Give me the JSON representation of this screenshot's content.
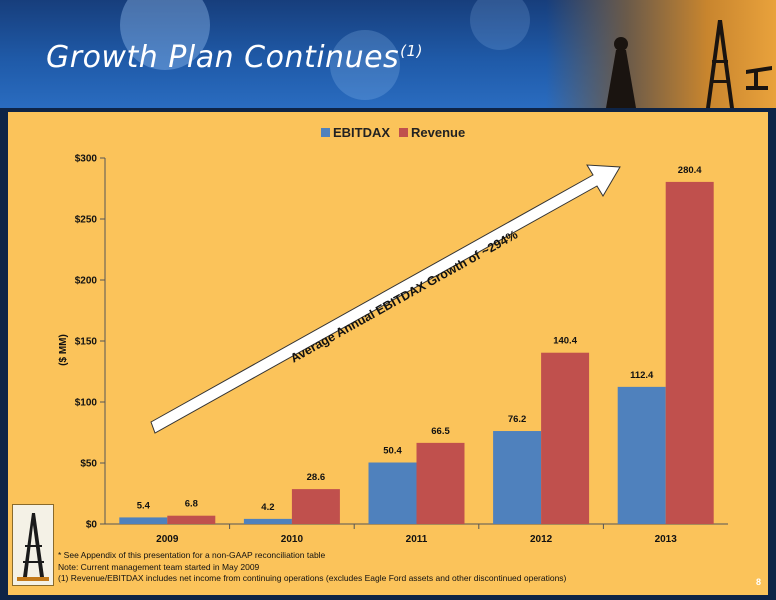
{
  "slide": {
    "title": "Growth Plan Continues",
    "title_superscript": "(1)",
    "page_number": "8",
    "footnotes": [
      "* See Appendix of this presentation for a non-GAAP reconciliation table",
      "Note: Current management team started in May 2009",
      "(1) Revenue/EBITDAX includes net income from continuing operations (excludes Eagle Ford assets and other discontinued operations)"
    ],
    "arrow_label": "Average Annual EBITDAX Growth of ~294%"
  },
  "colors": {
    "ebitdax": "#4f81bd",
    "revenue": "#c0504d",
    "panel": "#fbc35a",
    "header": "#1f5aa8"
  },
  "chart_data": {
    "type": "bar",
    "categories": [
      "2009",
      "2010",
      "2011",
      "2012",
      "2013"
    ],
    "series": [
      {
        "name": "EBITDAX",
        "values": [
          5.4,
          4.2,
          50.4,
          76.2,
          112.4
        ],
        "labels": [
          "5.4",
          "4.2",
          "50.4",
          "76.2",
          "112.4"
        ]
      },
      {
        "name": "Revenue",
        "values": [
          6.8,
          28.6,
          66.5,
          140.4,
          280.4
        ],
        "labels": [
          "6.8",
          "28.6",
          "66.5",
          "140.4",
          "280.4"
        ]
      }
    ],
    "ylabel": "($ MM)",
    "ylim": [
      0,
      300
    ],
    "yticks": [
      0,
      50,
      100,
      150,
      200,
      250,
      300
    ],
    "ytick_labels": [
      "$0",
      "$50",
      "$100",
      "$150",
      "$200",
      "$250",
      "$300"
    ],
    "legend_position": "top",
    "grid": false
  }
}
